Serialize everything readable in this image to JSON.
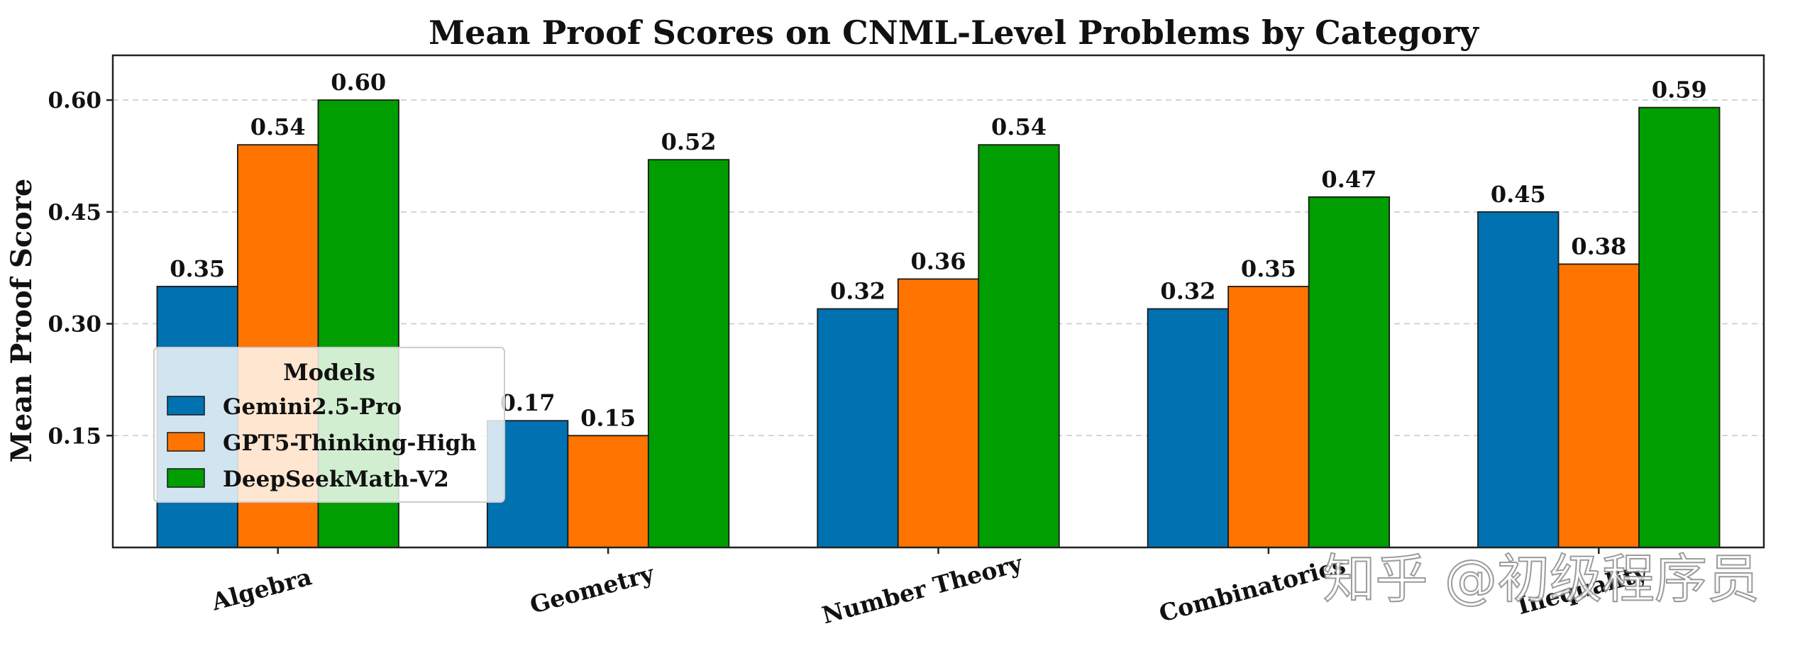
{
  "chart_data": {
    "type": "bar",
    "title": "Mean Proof Scores on CNML-Level Problems by Category",
    "xlabel": "",
    "ylabel": "Mean Proof Score",
    "categories": [
      "Algebra",
      "Geometry",
      "Number Theory",
      "Combinatorics",
      "Inequality"
    ],
    "series": [
      {
        "name": "Gemini2.5-Pro",
        "color": "#0072b2",
        "values": [
          0.35,
          0.17,
          0.32,
          0.32,
          0.45
        ]
      },
      {
        "name": "GPT5-Thinking-High",
        "color": "#ff7400",
        "values": [
          0.54,
          0.15,
          0.36,
          0.35,
          0.38
        ]
      },
      {
        "name": "DeepSeekMath-V2",
        "color": "#009e00",
        "values": [
          0.6,
          0.52,
          0.54,
          0.47,
          0.59
        ]
      }
    ],
    "ylim": [
      0.0,
      0.66
    ],
    "yticks": [
      "0.15",
      "0.30",
      "0.45",
      "0.60"
    ],
    "grid": "horizontal dashed",
    "legend": {
      "title": "Models",
      "placement": "center-left"
    }
  },
  "watermark": "知乎 @初级程序员"
}
